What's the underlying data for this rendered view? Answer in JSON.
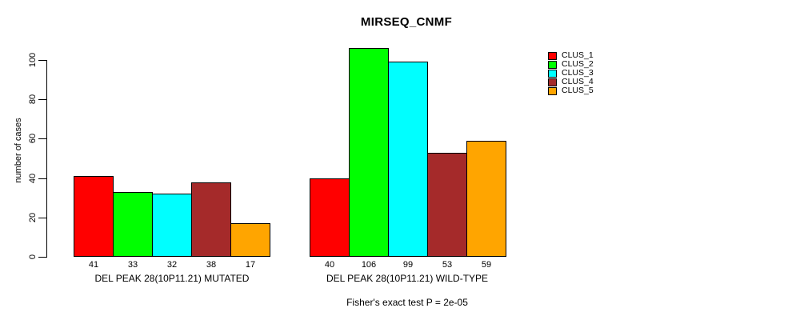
{
  "title": "MIRSEQ_CNMF",
  "y_axis_label": "number of cases",
  "footer": "Fisher's exact test P = 2e-05",
  "legend": {
    "entries": [
      {
        "label": "CLUS_1",
        "color": "#FF0000"
      },
      {
        "label": "CLUS_2",
        "color": "#00FF00"
      },
      {
        "label": "CLUS_3",
        "color": "#00FFFF"
      },
      {
        "label": "CLUS_4",
        "color": "#A52A2A"
      },
      {
        "label": "CLUS_5",
        "color": "#FFA500"
      }
    ]
  },
  "chart_data": {
    "type": "bar",
    "title": "MIRSEQ_CNMF",
    "xlabel": "",
    "ylabel": "number of cases",
    "categories": [
      "DEL PEAK 28(10P11.21) MUTATED",
      "DEL PEAK 28(10P11.21) WILD-TYPE"
    ],
    "series": [
      {
        "name": "CLUS_1",
        "color": "#FF0000",
        "values": [
          41,
          40
        ]
      },
      {
        "name": "CLUS_2",
        "color": "#00FF00",
        "values": [
          33,
          106
        ]
      },
      {
        "name": "CLUS_3",
        "color": "#00FFFF",
        "values": [
          32,
          99
        ]
      },
      {
        "name": "CLUS_4",
        "color": "#A52A2A",
        "values": [
          38,
          53
        ]
      },
      {
        "name": "CLUS_5",
        "color": "#FFA500",
        "values": [
          17,
          59
        ]
      }
    ],
    "bar_value_labels": {
      "mutated": [
        41,
        33,
        32,
        38,
        17
      ],
      "wild_type": [
        40,
        106,
        99,
        53,
        59
      ]
    },
    "ylim": [
      0,
      100
    ],
    "yticks": [
      0,
      20,
      40,
      60,
      80,
      100
    ],
    "grid": false,
    "legend_position": "right",
    "annotation": "Fisher's exact test P = 2e-05"
  }
}
